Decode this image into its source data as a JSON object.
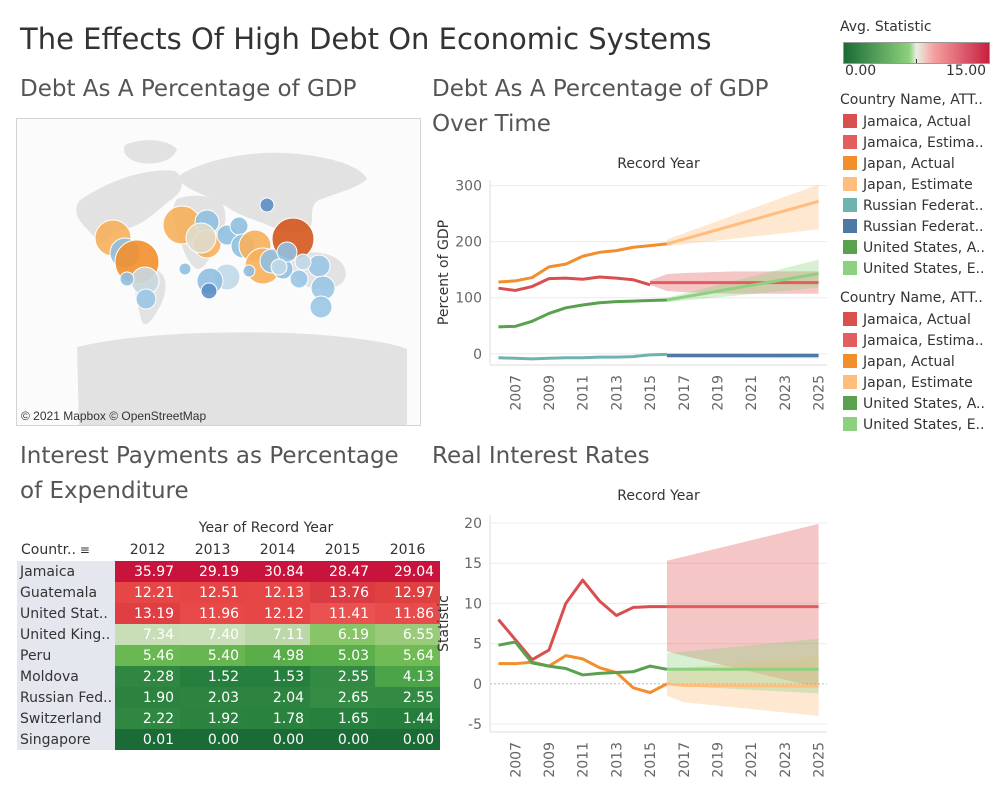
{
  "dashboard_title": "The Effects Of High Debt On Economic Systems",
  "color_legend": {
    "title": "Avg. Statistic",
    "min": "0.00",
    "max": "15.00",
    "low_color": "#1a6b35",
    "mid_color": "#e8efe0",
    "high_color": "#c72040"
  },
  "legend1": {
    "title": "Country Name, ATT..",
    "items": [
      {
        "label": "Jamaica, Actual",
        "color": "#d94f4f"
      },
      {
        "label": "Jamaica, Estima..",
        "color": "#e25d5d"
      },
      {
        "label": "Japan, Actual",
        "color": "#f28e2b"
      },
      {
        "label": "Japan, Estimate",
        "color": "#ffbe7d"
      },
      {
        "label": "Russian Federat..",
        "color": "#6fb3b0"
      },
      {
        "label": "Russian Federat..",
        "color": "#4e79a7"
      },
      {
        "label": "United States, A..",
        "color": "#59a14f"
      },
      {
        "label": "United States, E..",
        "color": "#8cd17d"
      }
    ]
  },
  "legend2": {
    "title": "Country Name, ATT..",
    "items": [
      {
        "label": "Jamaica, Actual",
        "color": "#d94f4f"
      },
      {
        "label": "Jamaica, Estima..",
        "color": "#e25d5d"
      },
      {
        "label": "Japan, Actual",
        "color": "#f28e2b"
      },
      {
        "label": "Japan, Estimate",
        "color": "#ffbe7d"
      },
      {
        "label": "United States, A..",
        "color": "#59a14f"
      },
      {
        "label": "United States, E..",
        "color": "#8cd17d"
      }
    ]
  },
  "map": {
    "title": "Debt As A Percentage of GDP",
    "attribution": "© 2021 Mapbox © OpenStreetMap"
  },
  "chart_data": [
    {
      "type": "line",
      "title": "Debt As A Percentage of GDP Over Time",
      "subtitle": "Record Year",
      "ylabel": "Percent of GDP",
      "ylim": [
        -20,
        310
      ],
      "yticks": [
        0,
        100,
        200,
        300
      ],
      "xlim": [
        2005.5,
        2025.5
      ],
      "xticks": [
        2007,
        2009,
        2011,
        2013,
        2015,
        2017,
        2019,
        2021,
        2023,
        2025
      ],
      "series": [
        {
          "name": "Jamaica, Actual",
          "color": "#d94f4f",
          "x": [
            2006,
            2007,
            2008,
            2009,
            2010,
            2011,
            2012,
            2013,
            2014,
            2015
          ],
          "y": [
            117,
            113,
            120,
            134,
            135,
            133,
            137,
            135,
            132,
            123
          ]
        },
        {
          "name": "Jamaica, Estima..",
          "color": "#e25d5d",
          "x": [
            2015,
            2016,
            2017,
            2018,
            2019,
            2020,
            2021,
            2022,
            2023,
            2024,
            2025
          ],
          "y": [
            127,
            127,
            127,
            127,
            127,
            127,
            127,
            127,
            127,
            127,
            127
          ],
          "band_lower": [
            123,
            112,
            110,
            109,
            108,
            107,
            107,
            107,
            107,
            107,
            107
          ],
          "band_upper": [
            131,
            142,
            144,
            145,
            146,
            147,
            147,
            147,
            147,
            147,
            147
          ]
        },
        {
          "name": "Japan, Actual",
          "color": "#f28e2b",
          "x": [
            2006,
            2007,
            2008,
            2009,
            2010,
            2011,
            2012,
            2013,
            2014,
            2015,
            2016
          ],
          "y": [
            128,
            130,
            136,
            155,
            160,
            174,
            181,
            184,
            190,
            193,
            196
          ]
        },
        {
          "name": "Japan, Estimate",
          "color": "#ffbe7d",
          "x": [
            2016,
            2025
          ],
          "y": [
            196,
            272
          ],
          "band_lower": [
            192,
            222
          ],
          "band_upper": [
            204,
            302
          ]
        },
        {
          "name": "Russian Federat..",
          "color": "#6fb3b0",
          "x": [
            2006,
            2007,
            2008,
            2009,
            2010,
            2011,
            2012,
            2013,
            2014,
            2015,
            2016
          ],
          "y": [
            -7,
            -8,
            -9,
            -8,
            -7,
            -7,
            -6,
            -6,
            -5,
            -2,
            -1
          ]
        },
        {
          "name": "Russian Federat..",
          "color": "#4e79a7",
          "x": [
            2016,
            2025
          ],
          "y": [
            -3,
            -3
          ],
          "band_lower": [
            -7,
            -8
          ],
          "band_upper": [
            1,
            1
          ]
        },
        {
          "name": "United States, A..",
          "color": "#59a14f",
          "x": [
            2006,
            2007,
            2008,
            2009,
            2010,
            2011,
            2012,
            2013,
            2014,
            2015,
            2016
          ],
          "y": [
            48,
            49,
            58,
            72,
            82,
            87,
            91,
            93,
            94,
            95,
            96
          ]
        },
        {
          "name": "United States, E..",
          "color": "#8cd17d",
          "x": [
            2016,
            2025
          ],
          "y": [
            96,
            143
          ],
          "band_lower": [
            92,
            118
          ],
          "band_upper": [
            100,
            168
          ]
        }
      ]
    },
    {
      "type": "table",
      "title": "Interest Payments as Percentage of Expenditure",
      "column_header": "Year of Record Year",
      "row_header": "Countr..",
      "columns": [
        "2012",
        "2013",
        "2014",
        "2015",
        "2016"
      ],
      "rows": [
        {
          "country": "Jamaica",
          "values": [
            "35.97",
            "29.19",
            "30.84",
            "28.47",
            "29.04"
          ],
          "colors": [
            "#c8143c",
            "#c8143c",
            "#c8143c",
            "#c8143c",
            "#c8143c"
          ]
        },
        {
          "country": "Guatemala",
          "values": [
            "12.21",
            "12.51",
            "12.13",
            "13.76",
            "12.97"
          ],
          "colors": [
            "#e64646",
            "#e54545",
            "#e64646",
            "#db3b43",
            "#e04040"
          ]
        },
        {
          "country": "United Stat..",
          "values": [
            "13.19",
            "11.96",
            "12.12",
            "11.41",
            "11.86"
          ],
          "colors": [
            "#df3f42",
            "#e74848",
            "#e64646",
            "#ea5151",
            "#e84b4b"
          ]
        },
        {
          "country": "United King..",
          "values": [
            "7.34",
            "7.40",
            "7.11",
            "6.19",
            "6.55"
          ],
          "colors": [
            "#c8deb6",
            "#c9dfb8",
            "#bcd8a8",
            "#88c468",
            "#99cb7b"
          ]
        },
        {
          "country": "Peru",
          "values": [
            "5.46",
            "5.40",
            "4.98",
            "5.03",
            "5.64"
          ],
          "colors": [
            "#6ab852",
            "#68b651",
            "#5aae4a",
            "#5baf4b",
            "#70bb55"
          ]
        },
        {
          "country": "Moldova",
          "values": [
            "2.28",
            "1.52",
            "1.53",
            "2.55",
            "4.13"
          ],
          "colors": [
            "#2f8741",
            "#277f3d",
            "#277f3d",
            "#338b43",
            "#4ba448"
          ]
        },
        {
          "country": "Russian Fed..",
          "values": [
            "1.90",
            "2.03",
            "2.04",
            "2.65",
            "2.55"
          ],
          "colors": [
            "#2b833f",
            "#2c8440",
            "#2c8440",
            "#348c44",
            "#338b43"
          ]
        },
        {
          "country": "Switzerland",
          "values": [
            "2.22",
            "1.92",
            "1.78",
            "1.65",
            "1.44"
          ],
          "colors": [
            "#2f8741",
            "#2b833f",
            "#2a823f",
            "#28803e",
            "#267e3d"
          ]
        },
        {
          "country": "Singapore",
          "values": [
            "0.01",
            "0.00",
            "0.00",
            "0.00",
            "0.00"
          ],
          "colors": [
            "#1a6b35",
            "#1a6b35",
            "#1a6b35",
            "#1a6b35",
            "#1a6b35"
          ]
        }
      ]
    },
    {
      "type": "line",
      "title": "Real Interest Rates",
      "subtitle": "Record Year",
      "ylabel": "Statistic",
      "ylim": [
        -6,
        21
      ],
      "yticks": [
        -5,
        0,
        5,
        10,
        15,
        20
      ],
      "xlim": [
        2005.5,
        2025.5
      ],
      "xticks": [
        2007,
        2009,
        2011,
        2013,
        2015,
        2017,
        2019,
        2021,
        2023,
        2025
      ],
      "series": [
        {
          "name": "Jamaica, Actual",
          "color": "#d94f4f",
          "x": [
            2006,
            2007,
            2008,
            2009,
            2010,
            2011,
            2012,
            2013,
            2014,
            2015,
            2016
          ],
          "y": [
            8.0,
            5.5,
            3.0,
            4.2,
            10.0,
            12.9,
            10.3,
            8.5,
            9.5,
            9.6,
            9.6
          ]
        },
        {
          "name": "Jamaica, Estima..",
          "color": "#e25d5d",
          "x": [
            2016,
            2025
          ],
          "y": [
            9.6,
            9.6
          ],
          "band_lower": [
            4.0,
            -0.5
          ],
          "band_upper": [
            15.3,
            19.9
          ]
        },
        {
          "name": "Japan, Actual",
          "color": "#f28e2b",
          "x": [
            2006,
            2007,
            2008,
            2009,
            2010,
            2011,
            2012,
            2013,
            2014,
            2015,
            2016
          ],
          "y": [
            2.5,
            2.5,
            2.7,
            2.2,
            3.5,
            3.1,
            2.0,
            1.4,
            -0.5,
            -1.1,
            0.0
          ]
        },
        {
          "name": "Japan, Estimate",
          "color": "#ffbe7d",
          "x": [
            2016,
            2017,
            2025
          ],
          "y": [
            0.0,
            -0.2,
            -0.3
          ],
          "band_lower": [
            -1.5,
            -2.3,
            -4.0
          ],
          "band_upper": [
            1.5,
            2.0,
            3.4
          ]
        },
        {
          "name": "United States, A..",
          "color": "#59a14f",
          "x": [
            2006,
            2007,
            2008,
            2009,
            2010,
            2011,
            2012,
            2013,
            2014,
            2015,
            2016
          ],
          "y": [
            4.8,
            5.2,
            2.6,
            2.2,
            1.9,
            1.1,
            1.3,
            1.4,
            1.5,
            2.2,
            1.8
          ]
        },
        {
          "name": "United States, E..",
          "color": "#8cd17d",
          "x": [
            2016,
            2025
          ],
          "y": [
            1.8,
            1.8
          ],
          "band_lower": [
            -0.2,
            -1.2
          ],
          "band_upper": [
            3.8,
            5.6
          ]
        }
      ]
    }
  ]
}
